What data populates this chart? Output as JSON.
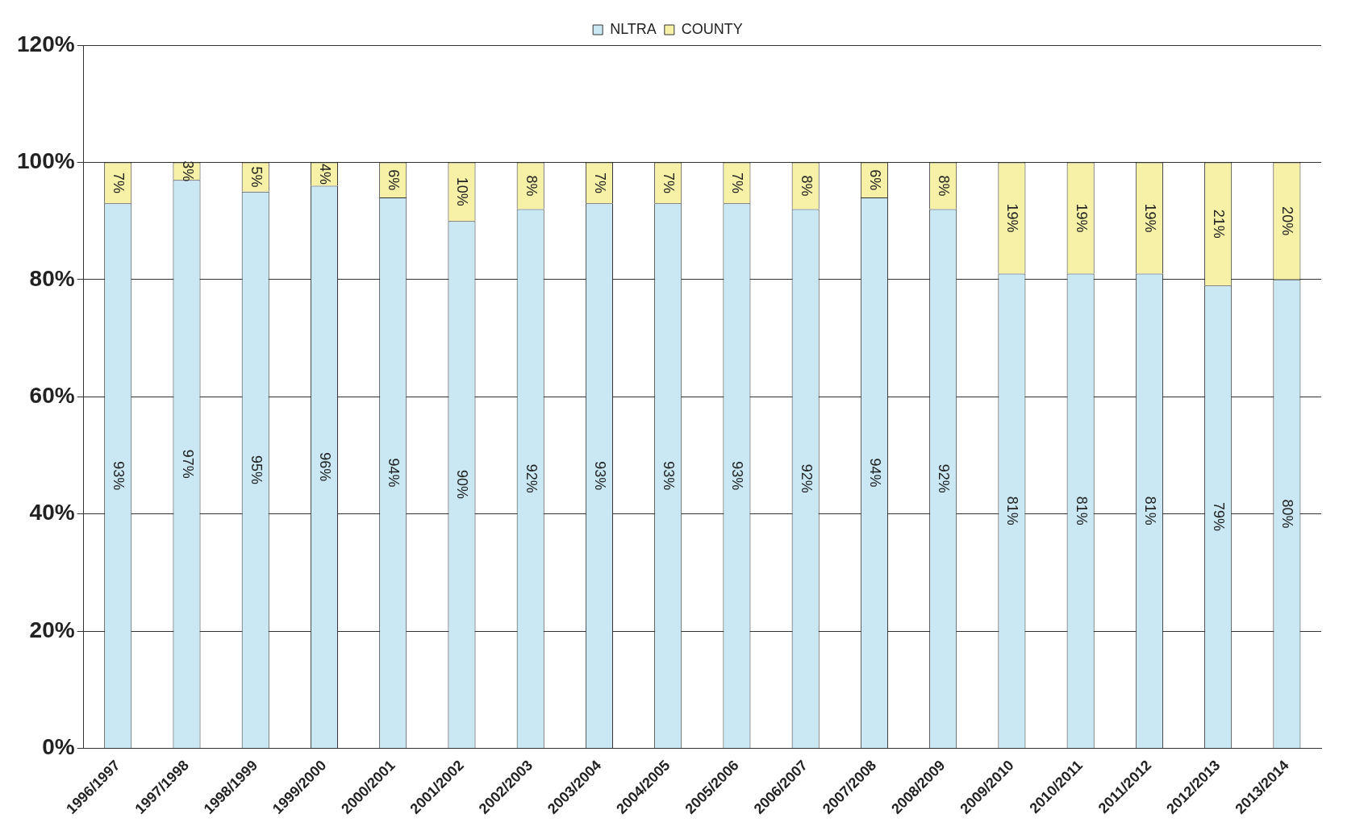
{
  "chart_data": {
    "type": "bar",
    "stacked": true,
    "categories": [
      "1996/1997",
      "1997/1998",
      "1998/1999",
      "1999/2000",
      "2000/2001",
      "2001/2002",
      "2002/2003",
      "2003/2004",
      "2004/2005",
      "2005/2006",
      "2006/2007",
      "2007/2008",
      "2008/2009",
      "2009/2010",
      "2010/2011",
      "2011/2012",
      "2012/2013",
      "2013/2014"
    ],
    "series": [
      {
        "name": "NLTRA",
        "color": "#c9e8f4",
        "values": [
          93,
          97,
          95,
          96,
          94,
          90,
          92,
          93,
          93,
          93,
          92,
          94,
          92,
          81,
          81,
          81,
          79,
          80
        ],
        "value_labels": [
          "93%",
          "97%",
          "95%",
          "96%",
          "94%",
          "90%",
          "92%",
          "93%",
          "93%",
          "93%",
          "92%",
          "94%",
          "92%",
          "81%",
          "81%",
          "81%",
          "79%",
          "80%"
        ]
      },
      {
        "name": "COUNTY",
        "color": "#f6f1a6",
        "values": [
          7,
          3,
          5,
          4,
          6,
          10,
          8,
          7,
          7,
          7,
          8,
          6,
          8,
          19,
          19,
          19,
          21,
          20
        ],
        "value_labels": [
          "7%",
          "3%",
          "5%",
          "4%",
          "6%",
          "10%",
          "8%",
          "7%",
          "7%",
          "7%",
          "8%",
          "6%",
          "8%",
          "19%",
          "19%",
          "19%",
          "21%",
          "20%"
        ]
      }
    ],
    "ylim": [
      0,
      120
    ],
    "yticks": [
      {
        "value": 0,
        "label": "0%"
      },
      {
        "value": 20,
        "label": "20%"
      },
      {
        "value": 40,
        "label": "40%"
      },
      {
        "value": 60,
        "label": "60%"
      },
      {
        "value": 80,
        "label": "80%"
      },
      {
        "value": 100,
        "label": "100%"
      },
      {
        "value": 120,
        "label": "120%"
      }
    ],
    "grid": "y",
    "legend": "top"
  }
}
